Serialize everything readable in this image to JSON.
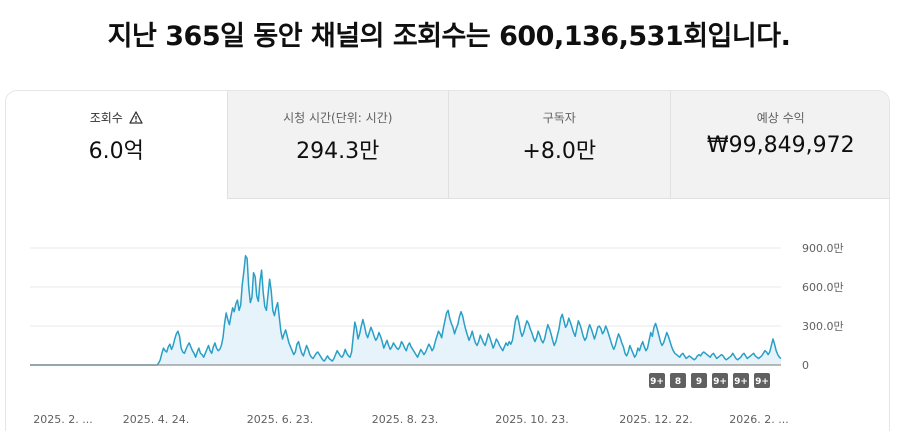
{
  "headline": "지난 365일 동안 채널의 조회수는 600,136,531회입니다.",
  "tabs": [
    {
      "label": "조회수",
      "value": "6.0억",
      "active": true,
      "icon": "warning-icon"
    },
    {
      "label": "시청 시간(단위: 시간)",
      "value": "294.3만",
      "active": false
    },
    {
      "label": "구독자",
      "value": "+8.0만",
      "active": false
    },
    {
      "label": "예상 수익",
      "value": "₩99,849,972",
      "active": false
    }
  ],
  "colors": {
    "line": "#2a9fc6",
    "fill": "#e6f3fa",
    "baseline": "#909090",
    "grid": "#e8e8e8"
  },
  "badges": [
    "9+",
    "8",
    "9",
    "9+",
    "9+",
    "9+"
  ],
  "chart_data": {
    "type": "area",
    "x_tick_labels": [
      "2025. 2. ...",
      "2025. 4. 24.",
      "2025. 6. 23.",
      "2025. 8. 23.",
      "2025. 10. 23.",
      "2025. 12. 22.",
      "2026. 2. ..."
    ],
    "y_tick_labels": [
      "900.0만",
      "600.0만",
      "300.0만",
      "0"
    ],
    "ylim": [
      0,
      9000000
    ],
    "grid": true,
    "series": [
      {
        "values": [
          0,
          0,
          0,
          0,
          0,
          0,
          0,
          0,
          0,
          0,
          0,
          0,
          0,
          0,
          0,
          0,
          0,
          0,
          0,
          0,
          0,
          0,
          0,
          0,
          0,
          0,
          0,
          0,
          0,
          0,
          0,
          0,
          0,
          0,
          0,
          0,
          0,
          0,
          0,
          0,
          0,
          0,
          0,
          0,
          0,
          0,
          0,
          0,
          0,
          0,
          0,
          0,
          0,
          0,
          0,
          0,
          0,
          0,
          0,
          0,
          0,
          0,
          0,
          0,
          0,
          0,
          0,
          0,
          0,
          0,
          0,
          0,
          0,
          0,
          0,
          0,
          0,
          0,
          0,
          0,
          150000,
          400000,
          900000,
          1300000,
          1100000,
          1000000,
          1400000,
          1600000,
          1200000,
          1500000,
          2000000,
          2400000,
          2600000,
          2200000,
          1300000,
          1000000,
          900000,
          1200000,
          1500000,
          1700000,
          1400000,
          1100000,
          900000,
          600000,
          1000000,
          1300000,
          900000,
          800000,
          600000,
          900000,
          1200000,
          1500000,
          1100000,
          900000,
          1400000,
          1700000,
          1300000,
          1100000,
          1200000,
          1500000,
          2100000,
          3200000,
          4000000,
          3500000,
          3100000,
          3800000,
          4400000,
          4100000,
          4700000,
          5000000,
          4200000,
          4600000,
          6200000,
          7200000,
          8400000,
          8200000,
          6000000,
          4800000,
          5200000,
          7100000,
          6800000,
          5300000,
          4900000,
          6400000,
          7300000,
          5600000,
          4500000,
          4200000,
          5400000,
          6600000,
          5700000,
          4200000,
          3800000,
          4400000,
          4800000,
          3700000,
          2600000,
          2000000,
          2400000,
          2700000,
          2200000,
          1700000,
          1400000,
          1100000,
          800000,
          1000000,
          1600000,
          1800000,
          1300000,
          900000,
          700000,
          1100000,
          1500000,
          1200000,
          800000,
          600000,
          500000,
          700000,
          900000,
          1000000,
          800000,
          600000,
          400000,
          300000,
          500000,
          700000,
          500000,
          400000,
          300000,
          500000,
          800000,
          1100000,
          900000,
          700000,
          600000,
          800000,
          1200000,
          900000,
          700000,
          600000,
          1000000,
          2200000,
          3300000,
          2800000,
          2000000,
          2400000,
          3000000,
          3500000,
          3000000,
          2400000,
          2100000,
          2500000,
          2900000,
          2600000,
          2200000,
          1900000,
          2100000,
          2500000,
          2200000,
          1800000,
          1300000,
          1600000,
          1900000,
          1500000,
          1200000,
          1400000,
          1700000,
          1500000,
          1300000,
          1200000,
          1400000,
          1800000,
          1600000,
          1300000,
          1100000,
          1500000,
          1700000,
          1400000,
          1200000,
          1000000,
          800000,
          600000,
          900000,
          1200000,
          1000000,
          800000,
          1000000,
          1300000,
          1600000,
          1400000,
          1100000,
          1300000,
          1800000,
          2200000,
          2600000,
          2400000,
          2100000,
          2800000,
          3400000,
          4000000,
          4200000,
          3600000,
          3200000,
          2900000,
          2400000,
          2800000,
          3100000,
          3700000,
          4100000,
          3800000,
          3200000,
          2700000,
          2300000,
          1900000,
          2200000,
          2600000,
          2100000,
          1700000,
          1500000,
          1800000,
          2300000,
          2000000,
          1700000,
          1500000,
          1900000,
          2400000,
          2100000,
          1700000,
          1300000,
          1600000,
          2000000,
          1800000,
          1500000,
          1300000,
          1100000,
          1400000,
          1700000,
          1500000,
          1800000,
          1600000,
          1900000,
          2700000,
          3500000,
          3800000,
          3300000,
          2600000,
          2200000,
          2500000,
          3000000,
          3400000,
          3200000,
          2800000,
          2500000,
          2100000,
          1800000,
          2100000,
          2600000,
          2300000,
          1900000,
          1700000,
          2000000,
          2600000,
          3100000,
          2800000,
          2400000,
          1900000,
          1500000,
          1800000,
          2300000,
          2800000,
          3600000,
          3900000,
          3400000,
          2900000,
          3100000,
          3600000,
          3300000,
          2900000,
          2500000,
          2200000,
          2800000,
          3400000,
          3100000,
          2700000,
          2200000,
          1900000,
          2100000,
          2700000,
          3100000,
          2800000,
          2400000,
          2000000,
          2400000,
          2900000,
          3000000,
          2800000,
          2400000,
          2600000,
          3000000,
          2700000,
          2300000,
          1900000,
          1500000,
          1200000,
          1500000,
          2000000,
          2400000,
          2100000,
          1700000,
          1400000,
          900000,
          700000,
          1000000,
          1500000,
          1200000,
          900000,
          600000,
          800000,
          1300000,
          1100000,
          1500000,
          1800000,
          1400000,
          1100000,
          1300000,
          1900000,
          2500000,
          2200000,
          2900000,
          3200000,
          2800000,
          2300000,
          1800000,
          1500000,
          1700000,
          2100000,
          2500000,
          2200000,
          1800000,
          1400000,
          1100000,
          900000,
          800000,
          700000,
          600000,
          800000,
          900000,
          700000,
          500000,
          600000,
          700000,
          600000,
          500000,
          400000,
          500000,
          700000,
          800000,
          700000,
          900000,
          1000000,
          900000,
          800000,
          700000,
          600000,
          800000,
          900000,
          700000,
          500000,
          600000,
          700000,
          800000,
          700000,
          500000,
          400000,
          500000,
          600000,
          700000,
          900000,
          700000,
          500000,
          400000,
          500000,
          600000,
          800000,
          900000,
          700000,
          500000,
          600000,
          700000,
          800000,
          900000,
          700000,
          600000,
          500000,
          600000,
          700000,
          900000,
          1100000,
          1000000,
          800000,
          1000000,
          1500000,
          2000000,
          1600000,
          1100000,
          800000,
          600000,
          500000
        ]
      }
    ]
  }
}
